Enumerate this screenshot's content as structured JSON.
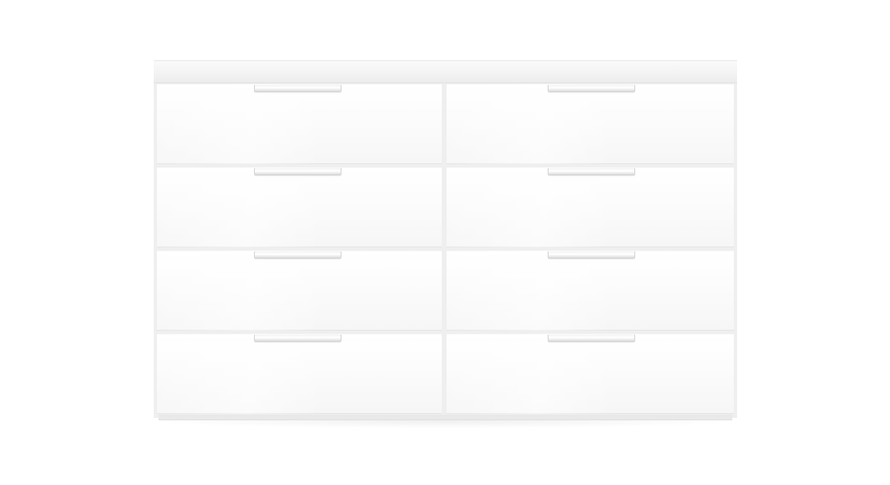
{
  "image": {
    "subject": "dresser-with-eight-drawers",
    "colors": {
      "background": "#ffffff",
      "body": "#f4f4f4",
      "drawer_front": "#fdfdfd",
      "gap": "#e6e6e6",
      "handle": "#eeeeee"
    },
    "layout": {
      "columns": 2,
      "rows": 4
    }
  },
  "dresser": {
    "drawers": [
      {
        "column": "left",
        "row": 1
      },
      {
        "column": "left",
        "row": 2
      },
      {
        "column": "left",
        "row": 3
      },
      {
        "column": "left",
        "row": 4
      },
      {
        "column": "right",
        "row": 1
      },
      {
        "column": "right",
        "row": 2
      },
      {
        "column": "right",
        "row": 3
      },
      {
        "column": "right",
        "row": 4
      }
    ]
  }
}
